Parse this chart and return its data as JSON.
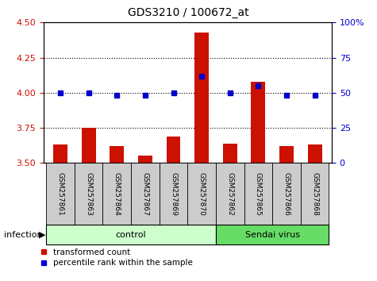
{
  "title": "GDS3210 / 100672_at",
  "samples": [
    "GSM257861",
    "GSM257863",
    "GSM257864",
    "GSM257867",
    "GSM257869",
    "GSM257870",
    "GSM257862",
    "GSM257865",
    "GSM257866",
    "GSM257868"
  ],
  "bar_values": [
    3.63,
    3.75,
    3.62,
    3.55,
    3.69,
    4.43,
    3.64,
    4.08,
    3.62,
    3.63
  ],
  "percentile_values": [
    50,
    50,
    48,
    48,
    50,
    62,
    50,
    55,
    48,
    48
  ],
  "n_control": 6,
  "n_sendai": 4,
  "ylim_left": [
    3.5,
    4.5
  ],
  "ylim_right": [
    0,
    100
  ],
  "yticks_left": [
    3.5,
    3.75,
    4.0,
    4.25,
    4.5
  ],
  "yticks_right": [
    0,
    25,
    50,
    75,
    100
  ],
  "bar_color": "#cc1100",
  "dot_color": "#0000cc",
  "control_bg": "#ccffcc",
  "sendai_bg": "#66dd66",
  "sample_bg": "#cccccc",
  "grid_color": "black",
  "bar_width": 0.5,
  "legend_bar_label": "transformed count",
  "legend_dot_label": "percentile rank within the sample",
  "infection_label": "infection",
  "control_label": "control",
  "sendai_label": "Sendai virus"
}
